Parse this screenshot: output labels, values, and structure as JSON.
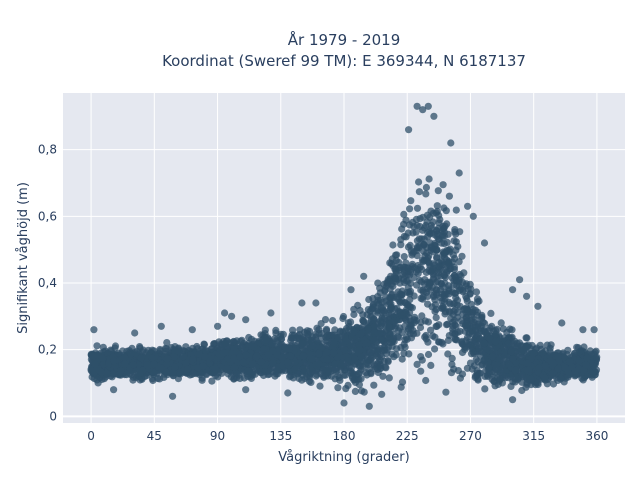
{
  "colors": {
    "plot_background": "#e5e8f0",
    "grid": "#ffffff",
    "marker": "#2f5069",
    "text": "#2a3f5f"
  },
  "chart_data": {
    "type": "scatter",
    "title_line1": "År 1979 - 2019",
    "title_line2": "Koordinat (Sweref 99 TM): E 369344, N 6187137",
    "xlabel": "Vågriktning (grader)",
    "ylabel": "Signifikant våghöjd (m)",
    "xlim": [
      -20,
      380
    ],
    "ylim": [
      -0.02,
      0.97
    ],
    "x_ticks": [
      0,
      45,
      90,
      135,
      180,
      225,
      270,
      315,
      360
    ],
    "x_tick_labels": [
      "0",
      "45",
      "90",
      "135",
      "180",
      "225",
      "270",
      "315",
      "360"
    ],
    "y_ticks": [
      0,
      0.2,
      0.4,
      0.6,
      0.8
    ],
    "y_tick_labels": [
      "0",
      "0,2",
      "0,4",
      "0,6",
      "0,8"
    ],
    "grid": true,
    "envelope": {
      "direction": [
        0,
        20,
        45,
        70,
        90,
        110,
        135,
        160,
        180,
        195,
        205,
        215,
        225,
        232,
        240,
        248,
        255,
        262,
        270,
        285,
        300,
        315,
        330,
        345,
        360
      ],
      "lower": [
        0.09,
        0.09,
        0.095,
        0.095,
        0.09,
        0.09,
        0.08,
        0.07,
        0.06,
        0.05,
        0.05,
        0.05,
        0.05,
        0.05,
        0.05,
        0.05,
        0.05,
        0.05,
        0.05,
        0.05,
        0.06,
        0.07,
        0.08,
        0.09,
        0.09
      ],
      "upper": [
        0.22,
        0.22,
        0.22,
        0.23,
        0.24,
        0.26,
        0.28,
        0.3,
        0.32,
        0.37,
        0.45,
        0.58,
        0.7,
        0.8,
        0.88,
        0.85,
        0.75,
        0.62,
        0.48,
        0.34,
        0.28,
        0.24,
        0.22,
        0.22,
        0.22
      ]
    },
    "outliers": [
      {
        "x": 2,
        "y": 0.26
      },
      {
        "x": 31,
        "y": 0.25
      },
      {
        "x": 50,
        "y": 0.27
      },
      {
        "x": 58,
        "y": 0.06
      },
      {
        "x": 72,
        "y": 0.26
      },
      {
        "x": 90,
        "y": 0.27
      },
      {
        "x": 95,
        "y": 0.31
      },
      {
        "x": 100,
        "y": 0.3
      },
      {
        "x": 110,
        "y": 0.29
      },
      {
        "x": 128,
        "y": 0.31
      },
      {
        "x": 150,
        "y": 0.34
      },
      {
        "x": 160,
        "y": 0.34
      },
      {
        "x": 185,
        "y": 0.38
      },
      {
        "x": 194,
        "y": 0.42
      },
      {
        "x": 198,
        "y": 0.03
      },
      {
        "x": 232,
        "y": 0.93
      },
      {
        "x": 236,
        "y": 0.92
      },
      {
        "x": 240,
        "y": 0.93
      },
      {
        "x": 244,
        "y": 0.9
      },
      {
        "x": 226,
        "y": 0.86
      },
      {
        "x": 256,
        "y": 0.82
      },
      {
        "x": 262,
        "y": 0.73
      },
      {
        "x": 268,
        "y": 0.63
      },
      {
        "x": 272,
        "y": 0.6
      },
      {
        "x": 280,
        "y": 0.52
      },
      {
        "x": 300,
        "y": 0.38
      },
      {
        "x": 305,
        "y": 0.41
      },
      {
        "x": 310,
        "y": 0.36
      },
      {
        "x": 318,
        "y": 0.33
      },
      {
        "x": 335,
        "y": 0.28
      },
      {
        "x": 350,
        "y": 0.26
      },
      {
        "x": 358,
        "y": 0.26
      },
      {
        "x": 300,
        "y": 0.05
      },
      {
        "x": 180,
        "y": 0.04
      },
      {
        "x": 16,
        "y": 0.08
      },
      {
        "x": 110,
        "y": 0.08
      },
      {
        "x": 140,
        "y": 0.07
      }
    ]
  }
}
